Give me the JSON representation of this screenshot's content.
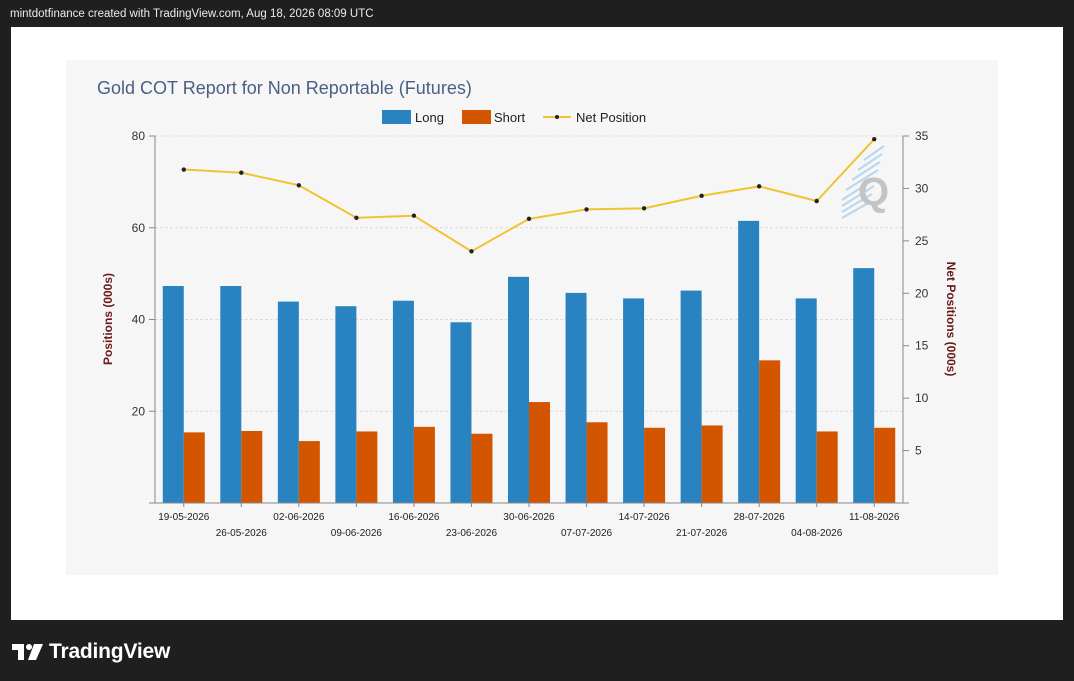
{
  "header": {
    "caption": "mintdotfinance created with TradingView.com, Aug 18, 2026 08:09 UTC"
  },
  "footer": {
    "brand": "TradingView"
  },
  "watermark": {
    "letter": "Q"
  },
  "colors": {
    "long": "#2a83c1",
    "short": "#d45500",
    "net": "#f0c430",
    "marker": "#222222",
    "title": "#4a5f82",
    "axis_title": "#6b1a1a"
  },
  "chart_data": {
    "type": "bar",
    "title": "Gold COT Report for Non Reportable (Futures)",
    "categories": [
      "19-05-2026",
      "26-05-2026",
      "02-06-2026",
      "09-06-2026",
      "16-06-2026",
      "23-06-2026",
      "30-06-2026",
      "07-07-2026",
      "14-07-2026",
      "21-07-2026",
      "28-07-2026",
      "04-08-2026",
      "11-08-2026"
    ],
    "series": [
      {
        "name": "Long",
        "type": "bar",
        "axis": "left",
        "values": [
          47.3,
          47.3,
          43.9,
          42.9,
          44.1,
          39.4,
          49.3,
          45.8,
          44.6,
          46.3,
          61.5,
          44.6,
          51.2
        ]
      },
      {
        "name": "Short",
        "type": "bar",
        "axis": "left",
        "values": [
          15.4,
          15.7,
          13.5,
          15.6,
          16.6,
          15.1,
          22.0,
          17.6,
          16.4,
          16.9,
          31.1,
          15.6,
          16.4
        ]
      },
      {
        "name": "Net Position",
        "type": "line",
        "axis": "right",
        "values": [
          31.8,
          31.5,
          30.3,
          27.2,
          27.4,
          24.0,
          27.1,
          28.0,
          28.1,
          29.3,
          30.2,
          28.8,
          34.7
        ]
      }
    ],
    "ylabel": "Positions (000s)",
    "y2label": "Net Positions (000s)",
    "ylim": [
      0,
      80
    ],
    "y2lim": [
      0,
      35
    ],
    "yticks": [
      20,
      40,
      60,
      80
    ],
    "y2ticks": [
      5,
      10,
      15,
      20,
      25,
      30,
      35
    ],
    "grid": true,
    "legend": "top-center"
  }
}
